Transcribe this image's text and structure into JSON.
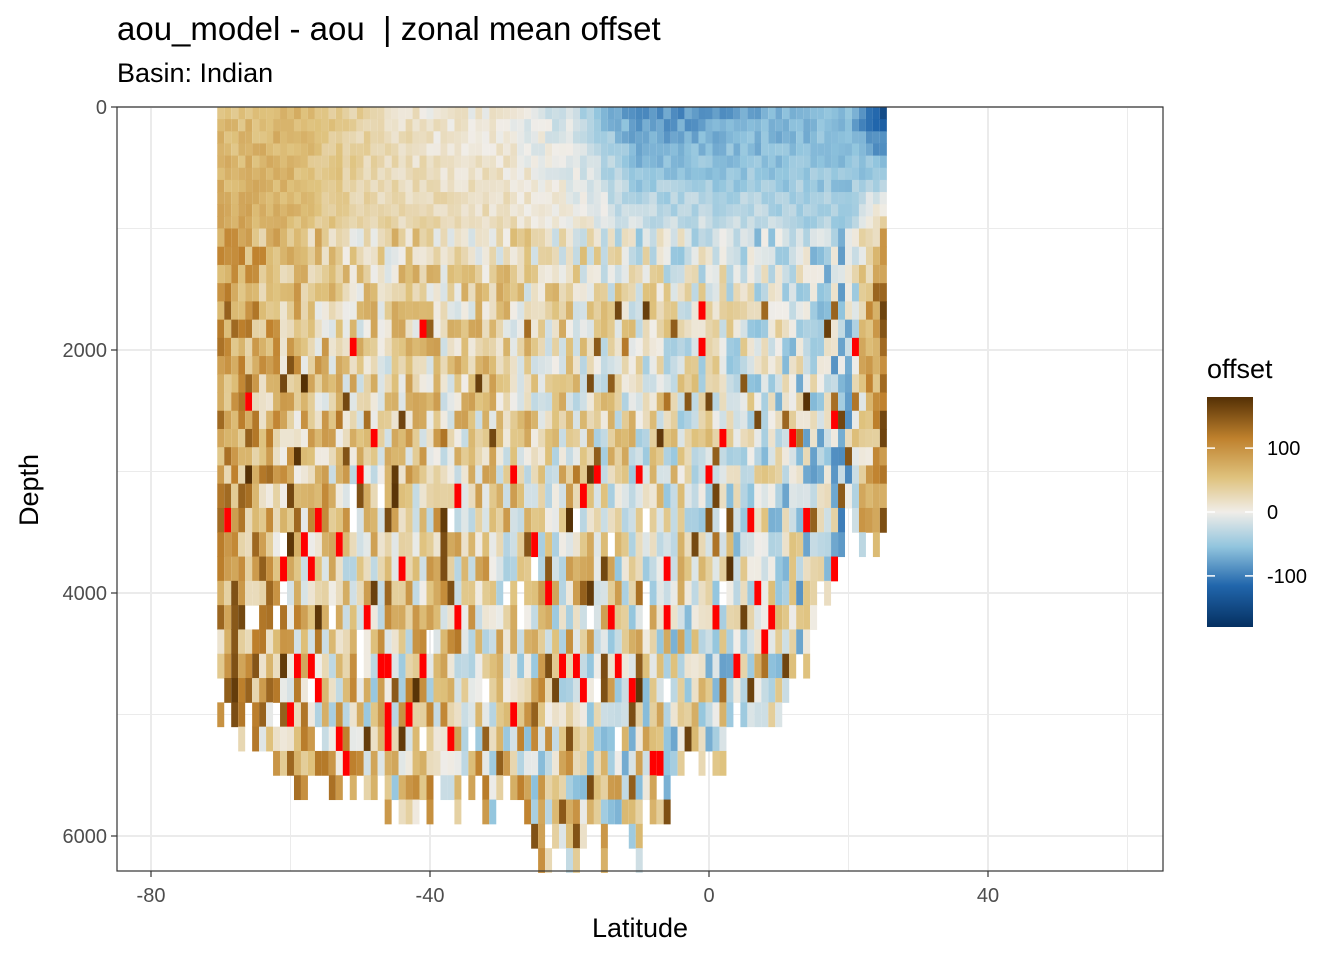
{
  "chart_data": {
    "type": "heatmap",
    "title": "aou_model - aou  | zonal mean offset",
    "subtitle": "Basin: Indian",
    "xlabel": "Latitude",
    "ylabel": "Depth",
    "xlim": [
      -85,
      65
    ],
    "ylim": [
      6300,
      0
    ],
    "y_reversed": true,
    "x_ticks": [
      -80,
      -40,
      0,
      40
    ],
    "y_ticks": [
      0,
      2000,
      4000,
      6000
    ],
    "grid": true,
    "legend": {
      "title": "offset",
      "position": "right",
      "ticks": [
        100,
        0,
        -100
      ],
      "range": [
        -180,
        180
      ],
      "out_of_range_color": "#ff0000"
    },
    "colors": {
      "strong_negative": "#053061",
      "negative": "#2166ac",
      "light_negative": "#92c5de",
      "neutral": "#f0ede8",
      "light_positive": "#dfc27d",
      "positive": "#bf812d",
      "strong_positive": "#543005"
    },
    "data_extent": {
      "lat_min": -70,
      "lat_max": 25,
      "cell_lat": 1,
      "depth_max": 6200
    },
    "zonal_offset_profiles": [
      {
        "lat": -68,
        "upper": 55,
        "deep": 90,
        "bottom_depth": 5000
      },
      {
        "lat": -60,
        "upper": 70,
        "deep": 55,
        "bottom_depth": 5500
      },
      {
        "lat": -50,
        "upper": 35,
        "deep": 30,
        "bottom_depth": 5500
      },
      {
        "lat": -40,
        "upper": 10,
        "deep": 35,
        "bottom_depth": 5700
      },
      {
        "lat": -30,
        "upper": 5,
        "deep": 30,
        "bottom_depth": 5600
      },
      {
        "lat": -20,
        "upper": -20,
        "deep": 25,
        "bottom_depth": 6200
      },
      {
        "lat": -10,
        "upper": -90,
        "deep": 15,
        "bottom_depth": 5900
      },
      {
        "lat": 0,
        "upper": -80,
        "deep": 5,
        "bottom_depth": 5300
      },
      {
        "lat": 10,
        "upper": -70,
        "deep": -10,
        "bottom_depth": 5000
      },
      {
        "lat": 20,
        "upper": -60,
        "deep": -35,
        "bottom_depth": 3400
      },
      {
        "lat": 25,
        "upper": -140,
        "deep": 130,
        "bottom_depth": 3300
      }
    ]
  }
}
